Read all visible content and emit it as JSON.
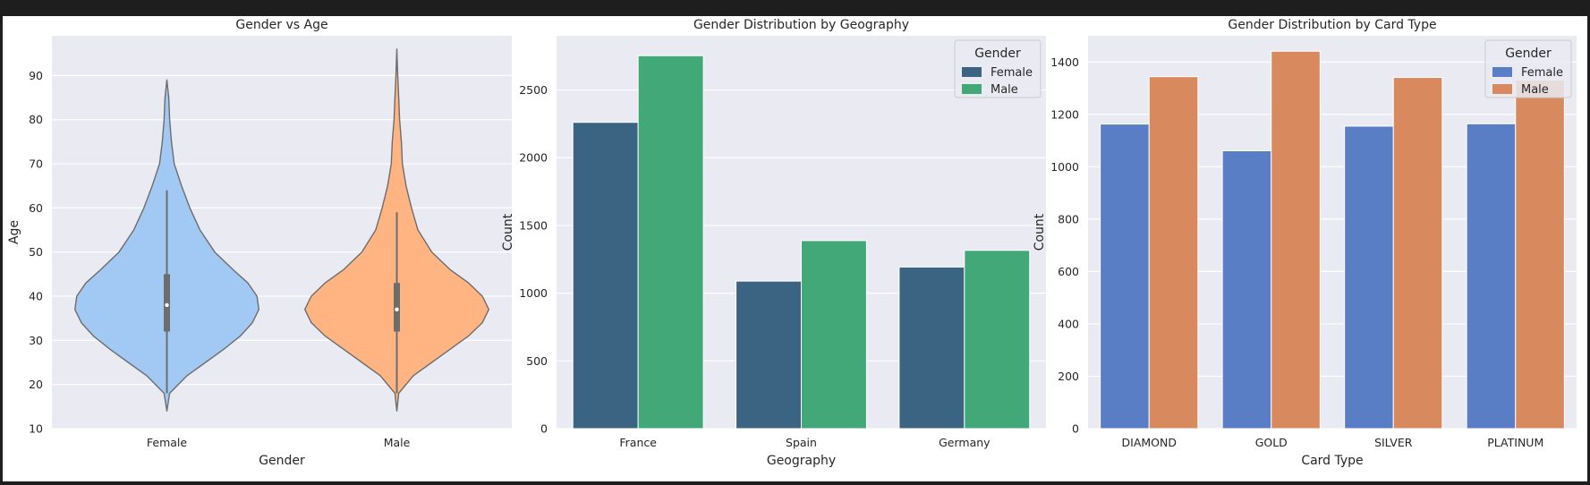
{
  "chart_data": [
    {
      "type": "violin",
      "title": "Gender vs Age",
      "xlabel": "Gender",
      "ylabel": "Age",
      "categories": [
        "Female",
        "Male"
      ],
      "ylim": [
        10,
        99
      ],
      "yticks": [
        10,
        20,
        30,
        40,
        50,
        60,
        70,
        80,
        90
      ],
      "grid": true,
      "colors": [
        "#a1c9f4",
        "#ffb482"
      ],
      "series": [
        {
          "category": "Female",
          "min": 18,
          "q1": 32,
          "median": 38,
          "q3": 45,
          "whisker_low": 18,
          "whisker_high": 64,
          "max": 88,
          "profile": [
            [
              14,
              0.0
            ],
            [
              18,
              0.03
            ],
            [
              22,
              0.22
            ],
            [
              25,
              0.42
            ],
            [
              28,
              0.62
            ],
            [
              31,
              0.8
            ],
            [
              34,
              0.93
            ],
            [
              37,
              1.0
            ],
            [
              40,
              0.98
            ],
            [
              43,
              0.88
            ],
            [
              46,
              0.72
            ],
            [
              50,
              0.52
            ],
            [
              55,
              0.36
            ],
            [
              60,
              0.25
            ],
            [
              65,
              0.16
            ],
            [
              70,
              0.08
            ],
            [
              75,
              0.05
            ],
            [
              80,
              0.03
            ],
            [
              85,
              0.02
            ],
            [
              89,
              0.0
            ]
          ]
        },
        {
          "category": "Male",
          "min": 18,
          "q1": 32,
          "median": 37,
          "q3": 43,
          "whisker_low": 18,
          "whisker_high": 59,
          "max": 92,
          "profile": [
            [
              14,
              0.0
            ],
            [
              18,
              0.02
            ],
            [
              22,
              0.18
            ],
            [
              25,
              0.38
            ],
            [
              28,
              0.58
            ],
            [
              31,
              0.78
            ],
            [
              34,
              0.93
            ],
            [
              37,
              1.0
            ],
            [
              40,
              0.93
            ],
            [
              43,
              0.78
            ],
            [
              46,
              0.58
            ],
            [
              50,
              0.38
            ],
            [
              55,
              0.23
            ],
            [
              60,
              0.16
            ],
            [
              65,
              0.1
            ],
            [
              70,
              0.06
            ],
            [
              75,
              0.05
            ],
            [
              80,
              0.03
            ],
            [
              85,
              0.02
            ],
            [
              90,
              0.01
            ],
            [
              96,
              0.0
            ]
          ]
        }
      ]
    },
    {
      "type": "bar",
      "title": "Gender Distribution by Geography",
      "xlabel": "Geography",
      "ylabel": "Count",
      "categories": [
        "France",
        "Spain",
        "Germany"
      ],
      "ylim": [
        0,
        2900
      ],
      "yticks": [
        0,
        500,
        1000,
        1500,
        2000,
        2500
      ],
      "grid": true,
      "legend": {
        "title": "Gender",
        "position": "top-right"
      },
      "series": [
        {
          "name": "Female",
          "color": "#3b6482",
          "values": [
            2261,
            1089,
            1193
          ]
        },
        {
          "name": "Male",
          "color": "#43a878",
          "values": [
            2753,
            1388,
            1316
          ]
        }
      ]
    },
    {
      "type": "bar",
      "title": "Gender Distribution by Card Type",
      "xlabel": "Card Type",
      "ylabel": "Count",
      "categories": [
        "DIAMOND",
        "GOLD",
        "SILVER",
        "PLATINUM"
      ],
      "ylim": [
        0,
        1500
      ],
      "yticks": [
        0,
        200,
        400,
        600,
        800,
        1000,
        1200,
        1400
      ],
      "grid": true,
      "legend": {
        "title": "Gender",
        "position": "top-right"
      },
      "series": [
        {
          "name": "Female",
          "color": "#5a7ec6",
          "values": [
            1163,
            1061,
            1155,
            1164
          ]
        },
        {
          "name": "Male",
          "color": "#d88a5e",
          "values": [
            1344,
            1441,
            1341,
            1331
          ]
        }
      ]
    }
  ]
}
